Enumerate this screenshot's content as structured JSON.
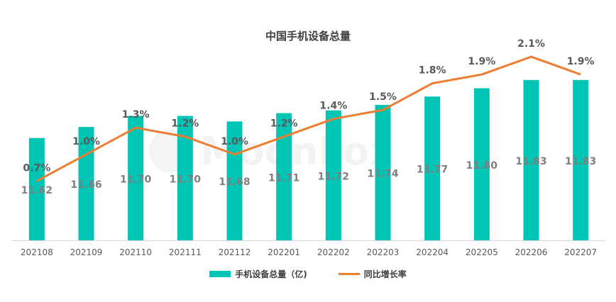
{
  "chart_data": {
    "type": "bar+line",
    "title": "中国手机设备总量",
    "categories": [
      "202108",
      "202109",
      "202110",
      "202111",
      "202112",
      "202201",
      "202202",
      "202203",
      "202204",
      "202205",
      "202206",
      "202207"
    ],
    "series": [
      {
        "name": "手机设备总量（亿)",
        "type": "bar",
        "color": "#00C4B4",
        "values": [
          11.62,
          11.66,
          11.7,
          11.7,
          11.68,
          11.71,
          11.72,
          11.74,
          11.77,
          11.8,
          11.83,
          11.83
        ],
        "labels": [
          "11.62",
          "11.66",
          "11.70",
          "11.70",
          "11.68",
          "11.71",
          "11.72",
          "11.74",
          "11.77",
          "11.80",
          "11.83",
          "11.83"
        ]
      },
      {
        "name": "同比增长率",
        "type": "line",
        "color": "#ED7D31",
        "values": [
          0.7,
          1.0,
          1.3,
          1.2,
          1.0,
          1.2,
          1.4,
          1.5,
          1.8,
          1.9,
          2.1,
          1.9
        ],
        "labels": [
          "0.7%",
          "1.0%",
          "1.3%",
          "1.2%",
          "1.0%",
          "1.2%",
          "1.4%",
          "1.5%",
          "1.8%",
          "1.9%",
          "2.1%",
          "1.9%"
        ]
      }
    ],
    "bar_axis_range": [
      11.25,
      11.85
    ],
    "line_axis_range": [
      -0.2,
      2.3
    ],
    "legend_position": "bottom",
    "grid": false
  },
  "watermark": "MoonFox"
}
